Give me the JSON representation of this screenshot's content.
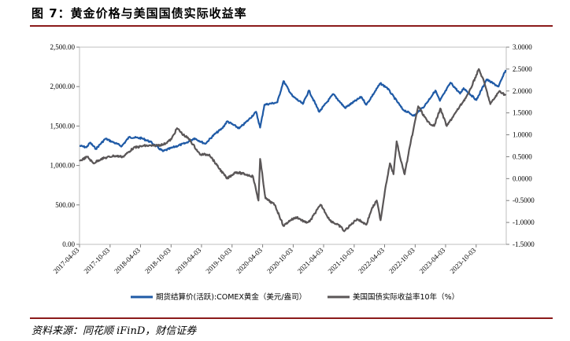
{
  "figure": {
    "title": "图 7：黄金价格与美国国债实际收益率",
    "source": "资料来源：同花顺 iFinD，财信证券"
  },
  "colors": {
    "gold": "#1f5aa6",
    "yield": "#5a5657"
  },
  "chart_data": {
    "type": "line",
    "title": "",
    "x_ticks": [
      "2017-04-03",
      "2017-10-03",
      "2018-04-03",
      "2018-10-03",
      "2019-04-03",
      "2019-10-03",
      "2020-04-03",
      "2020-10-03",
      "2021-04-03",
      "2021-10-03",
      "2022-04-03",
      "2022-10-03",
      "2023-04-03",
      "2023-10-03"
    ],
    "x_range": [
      "2017-04-03",
      "2024-03-31"
    ],
    "y_left": {
      "ticks": [
        "0.00",
        "500.00",
        "1,000.00",
        "1,500.00",
        "2,000.00",
        "2,500.00"
      ],
      "range": [
        0,
        2500
      ]
    },
    "y_right": {
      "ticks": [
        "-1.5000",
        "-1.0000",
        "-0.5000",
        "0.0000",
        "0.5000",
        "1.0000",
        "1.5000",
        "2.0000",
        "2.5000",
        "3.0000"
      ],
      "range": [
        -1.5,
        3.0
      ]
    },
    "legend_position": "bottom",
    "series": [
      {
        "name": "期货结算价(活跃):COMEX黄金（美元/盎司）",
        "axis": "left",
        "color": "#1f5aa6",
        "points": [
          [
            "2017-04-03",
            1250
          ],
          [
            "2017-05-15",
            1230
          ],
          [
            "2017-06-05",
            1290
          ],
          [
            "2017-07-10",
            1210
          ],
          [
            "2017-09-05",
            1340
          ],
          [
            "2017-10-16",
            1300
          ],
          [
            "2017-12-12",
            1245
          ],
          [
            "2018-01-25",
            1360
          ],
          [
            "2018-04-10",
            1345
          ],
          [
            "2018-06-01",
            1300
          ],
          [
            "2018-08-15",
            1180
          ],
          [
            "2018-10-15",
            1230
          ],
          [
            "2018-12-31",
            1285
          ],
          [
            "2019-02-20",
            1345
          ],
          [
            "2019-04-25",
            1275
          ],
          [
            "2019-06-20",
            1395
          ],
          [
            "2019-08-05",
            1470
          ],
          [
            "2019-09-04",
            1560
          ],
          [
            "2019-11-15",
            1470
          ],
          [
            "2020-01-08",
            1575
          ],
          [
            "2020-02-24",
            1680
          ],
          [
            "2020-03-19",
            1480
          ],
          [
            "2020-04-14",
            1770
          ],
          [
            "2020-06-30",
            1800
          ],
          [
            "2020-08-06",
            2070
          ],
          [
            "2020-09-28",
            1880
          ],
          [
            "2020-11-30",
            1780
          ],
          [
            "2021-01-05",
            1950
          ],
          [
            "2021-03-08",
            1680
          ],
          [
            "2021-05-31",
            1905
          ],
          [
            "2021-08-09",
            1730
          ],
          [
            "2021-11-15",
            1870
          ],
          [
            "2021-12-15",
            1770
          ],
          [
            "2022-03-08",
            2040
          ],
          [
            "2022-04-18",
            1985
          ],
          [
            "2022-07-21",
            1710
          ],
          [
            "2022-09-28",
            1630
          ],
          [
            "2022-11-30",
            1760
          ],
          [
            "2023-02-01",
            1950
          ],
          [
            "2023-02-28",
            1820
          ],
          [
            "2023-05-03",
            2050
          ],
          [
            "2023-06-29",
            1910
          ],
          [
            "2023-07-20",
            1980
          ],
          [
            "2023-10-05",
            1830
          ],
          [
            "2023-12-04",
            2090
          ],
          [
            "2024-02-14",
            2000
          ],
          [
            "2024-03-28",
            2210
          ]
        ]
      },
      {
        "name": "美国国债实际收益率10年（%）",
        "axis": "right",
        "color": "#5a5657",
        "points": [
          [
            "2017-04-03",
            0.4
          ],
          [
            "2017-05-20",
            0.5
          ],
          [
            "2017-06-25",
            0.35
          ],
          [
            "2017-08-10",
            0.45
          ],
          [
            "2017-10-25",
            0.52
          ],
          [
            "2017-12-20",
            0.5
          ],
          [
            "2018-02-20",
            0.7
          ],
          [
            "2018-04-25",
            0.75
          ],
          [
            "2018-06-20",
            0.75
          ],
          [
            "2018-08-20",
            0.78
          ],
          [
            "2018-10-05",
            0.9
          ],
          [
            "2018-11-08",
            1.15
          ],
          [
            "2018-12-15",
            1.0
          ],
          [
            "2019-01-20",
            0.9
          ],
          [
            "2019-03-25",
            0.55
          ],
          [
            "2019-05-20",
            0.55
          ],
          [
            "2019-07-05",
            0.3
          ],
          [
            "2019-09-03",
            0.0
          ],
          [
            "2019-10-25",
            0.15
          ],
          [
            "2019-12-20",
            0.1
          ],
          [
            "2020-02-05",
            0.05
          ],
          [
            "2020-03-09",
            -0.5
          ],
          [
            "2020-03-19",
            0.45
          ],
          [
            "2020-04-20",
            -0.45
          ],
          [
            "2020-06-15",
            -0.6
          ],
          [
            "2020-08-06",
            -1.08
          ],
          [
            "2020-09-15",
            -0.95
          ],
          [
            "2020-10-25",
            -0.88
          ],
          [
            "2020-12-15",
            -1.0
          ],
          [
            "2021-01-10",
            -0.98
          ],
          [
            "2021-02-25",
            -0.7
          ],
          [
            "2021-03-18",
            -0.6
          ],
          [
            "2021-05-10",
            -0.95
          ],
          [
            "2021-07-15",
            -1.1
          ],
          [
            "2021-08-04",
            -1.2
          ],
          [
            "2021-10-20",
            -0.92
          ],
          [
            "2021-11-25",
            -1.0
          ],
          [
            "2021-12-15",
            -1.05
          ],
          [
            "2022-01-15",
            -0.7
          ],
          [
            "2022-02-15",
            -0.5
          ],
          [
            "2022-03-10",
            -0.95
          ],
          [
            "2022-04-08",
            -0.2
          ],
          [
            "2022-05-05",
            0.35
          ],
          [
            "2022-05-26",
            0.1
          ],
          [
            "2022-06-14",
            0.85
          ],
          [
            "2022-07-10",
            0.4
          ],
          [
            "2022-08-01",
            0.1
          ],
          [
            "2022-09-05",
            0.8
          ],
          [
            "2022-10-21",
            1.65
          ],
          [
            "2022-12-15",
            1.3
          ],
          [
            "2023-01-25",
            1.2
          ],
          [
            "2023-03-02",
            1.6
          ],
          [
            "2023-04-10",
            1.2
          ],
          [
            "2023-06-10",
            1.55
          ],
          [
            "2023-08-20",
            1.95
          ],
          [
            "2023-10-19",
            2.5
          ],
          [
            "2023-11-20",
            2.2
          ],
          [
            "2023-12-27",
            1.7
          ],
          [
            "2024-02-20",
            2.0
          ],
          [
            "2024-03-28",
            1.9
          ]
        ]
      }
    ]
  }
}
